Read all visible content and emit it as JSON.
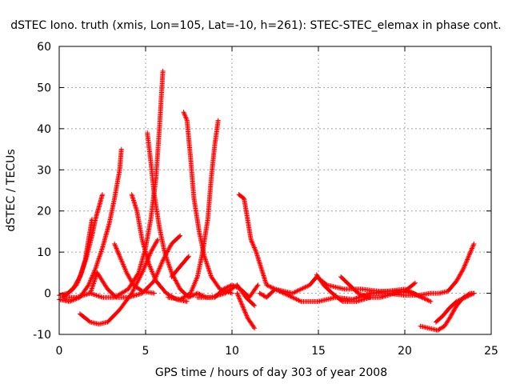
{
  "chart_data": {
    "type": "scatter",
    "title": "dSTEC Iono. truth (xmis, Lon=105, Lat=-10, h=261): STEC-STEC_elemax in phase cont.",
    "xlabel": "GPS time / hours of day 303 of year 2008",
    "ylabel": "dSTEC  / TECUs",
    "xlim": [
      0,
      25
    ],
    "ylim": [
      -10,
      60
    ],
    "xticks": [
      0,
      5,
      10,
      15,
      20,
      25
    ],
    "yticks": [
      -10,
      0,
      10,
      20,
      30,
      40,
      50,
      60
    ],
    "x_tick_labels": [
      "0",
      "5",
      "10",
      "15",
      "20",
      "25"
    ],
    "y_tick_labels": [
      "-10",
      "0",
      "10",
      "20",
      "30",
      "40",
      "50",
      "60"
    ],
    "grid": true,
    "marker": "plus",
    "color": "#ff0000",
    "series": [
      {
        "points": [
          [
            0.0,
            -0.5
          ],
          [
            0.5,
            0.0
          ],
          [
            1.0,
            2.0
          ],
          [
            1.3,
            5.0
          ],
          [
            1.6,
            9.0
          ],
          [
            1.9,
            14.0
          ],
          [
            2.1,
            18.0
          ],
          [
            2.3,
            21.0
          ],
          [
            2.5,
            24.0
          ]
        ]
      },
      {
        "points": [
          [
            0.0,
            -1.5
          ],
          [
            0.6,
            -2.0
          ],
          [
            1.2,
            -1.0
          ],
          [
            1.7,
            2.0
          ],
          [
            2.1,
            6.0
          ],
          [
            2.5,
            11.0
          ],
          [
            2.9,
            17.0
          ],
          [
            3.2,
            23.0
          ],
          [
            3.5,
            30.0
          ],
          [
            3.6,
            35.0
          ]
        ]
      },
      {
        "points": [
          [
            0.2,
            -1.0
          ],
          [
            0.8,
            1.0
          ],
          [
            1.2,
            4.0
          ],
          [
            1.5,
            8.0
          ],
          [
            1.7,
            13.0
          ],
          [
            1.9,
            18.0
          ]
        ]
      },
      {
        "points": [
          [
            0.3,
            -1.0
          ],
          [
            1.0,
            -1.0
          ],
          [
            1.8,
            0.0
          ],
          [
            2.5,
            -1.0
          ],
          [
            3.2,
            -1.0
          ],
          [
            4.0,
            1.0
          ],
          [
            4.6,
            5.0
          ],
          [
            5.0,
            11.0
          ],
          [
            5.3,
            18.0
          ],
          [
            5.6,
            28.0
          ],
          [
            5.8,
            40.0
          ],
          [
            6.0,
            54.0
          ]
        ]
      },
      {
        "points": [
          [
            1.2,
            -5.0
          ],
          [
            1.8,
            -7.0
          ],
          [
            2.3,
            -7.5
          ],
          [
            2.8,
            -7.0
          ],
          [
            3.5,
            -4.0
          ],
          [
            4.2,
            0.0
          ],
          [
            4.8,
            5.0
          ],
          [
            5.3,
            10.0
          ],
          [
            5.7,
            13.0
          ]
        ]
      },
      {
        "points": [
          [
            1.8,
            0.0
          ],
          [
            2.2,
            5.0
          ],
          [
            2.5,
            3.0
          ],
          [
            2.8,
            1.0
          ],
          [
            3.3,
            -1.0
          ],
          [
            4.0,
            -1.0
          ],
          [
            4.8,
            0.0
          ],
          [
            5.5,
            3.0
          ],
          [
            6.0,
            8.0
          ],
          [
            6.5,
            12.0
          ],
          [
            7.0,
            14.0
          ]
        ]
      },
      {
        "points": [
          [
            3.2,
            12.0
          ],
          [
            3.5,
            9.0
          ],
          [
            3.9,
            5.0
          ],
          [
            4.3,
            2.0
          ],
          [
            4.8,
            0.5
          ],
          [
            5.5,
            0.0
          ]
        ]
      },
      {
        "points": [
          [
            4.2,
            24.0
          ],
          [
            4.5,
            20.0
          ],
          [
            4.8,
            13.0
          ],
          [
            5.2,
            7.0
          ],
          [
            5.6,
            3.0
          ],
          [
            6.2,
            0.0
          ],
          [
            6.8,
            -1.5
          ],
          [
            7.4,
            -2.0
          ]
        ]
      },
      {
        "points": [
          [
            5.1,
            39.0
          ],
          [
            5.3,
            32.0
          ],
          [
            5.5,
            24.0
          ],
          [
            5.8,
            16.0
          ],
          [
            6.1,
            10.0
          ],
          [
            6.5,
            5.0
          ],
          [
            7.0,
            1.0
          ],
          [
            7.5,
            -1.0
          ],
          [
            8.0,
            0.0
          ],
          [
            8.5,
            -1.0
          ],
          [
            9.0,
            -1.0
          ],
          [
            9.5,
            1.0
          ],
          [
            10.0,
            2.0
          ],
          [
            10.5,
            1.0
          ],
          [
            11.0,
            -1.0
          ],
          [
            11.5,
            2.0
          ]
        ]
      },
      {
        "points": [
          [
            7.2,
            44.0
          ],
          [
            7.4,
            42.0
          ],
          [
            7.6,
            33.0
          ],
          [
            7.8,
            23.0
          ],
          [
            8.1,
            15.0
          ],
          [
            8.4,
            9.0
          ],
          [
            8.8,
            4.0
          ],
          [
            9.3,
            1.0
          ],
          [
            10.0,
            0.0
          ]
        ]
      },
      {
        "points": [
          [
            6.5,
            4.0
          ],
          [
            7.0,
            6.5
          ],
          [
            7.5,
            9.0
          ]
        ]
      },
      {
        "points": [
          [
            6.3,
            -1.0
          ],
          [
            7.0,
            -1.5
          ],
          [
            7.6,
            0.0
          ],
          [
            8.0,
            4.0
          ],
          [
            8.3,
            10.0
          ],
          [
            8.6,
            18.0
          ],
          [
            8.8,
            28.0
          ],
          [
            9.0,
            36.0
          ],
          [
            9.2,
            42.0
          ]
        ]
      },
      {
        "points": [
          [
            8.0,
            -1.0
          ],
          [
            8.8,
            -1.0
          ],
          [
            9.6,
            0.0
          ],
          [
            10.3,
            2.0
          ],
          [
            10.8,
            -1.0
          ],
          [
            11.3,
            -3.0
          ]
        ]
      },
      {
        "points": [
          [
            10.4,
            24.0
          ],
          [
            10.7,
            23.0
          ],
          [
            10.9,
            18.0
          ],
          [
            11.1,
            13.0
          ],
          [
            11.4,
            10.0
          ],
          [
            11.7,
            6.0
          ],
          [
            12.0,
            2.0
          ],
          [
            12.5,
            1.0
          ],
          [
            13.5,
            0.0
          ],
          [
            14.5,
            2.0
          ],
          [
            14.9,
            4.0
          ],
          [
            15.5,
            2.0
          ],
          [
            16.5,
            1.0
          ],
          [
            17.5,
            1.0
          ],
          [
            18.5,
            0.5
          ],
          [
            19.5,
            0.5
          ],
          [
            20.5,
            0.0
          ],
          [
            21.0,
            -1.0
          ],
          [
            21.5,
            -2.0
          ]
        ]
      },
      {
        "points": [
          [
            10.3,
            0.0
          ],
          [
            10.6,
            -3.0
          ],
          [
            10.9,
            -6.0
          ],
          [
            11.3,
            -8.5
          ]
        ]
      },
      {
        "points": [
          [
            11.6,
            0.0
          ],
          [
            12.0,
            -1.0
          ],
          [
            12.5,
            1.0
          ],
          [
            13.0,
            0.0
          ],
          [
            14.0,
            -2.0
          ],
          [
            15.0,
            -2.0
          ],
          [
            16.0,
            -1.0
          ],
          [
            17.0,
            -1.5
          ],
          [
            18.0,
            0.0
          ],
          [
            19.0,
            0.5
          ],
          [
            20.0,
            1.0
          ],
          [
            21.0,
            -1.0
          ]
        ]
      },
      {
        "points": [
          [
            14.9,
            4.5
          ],
          [
            15.3,
            2.0
          ],
          [
            15.8,
            0.0
          ],
          [
            16.4,
            -2.0
          ],
          [
            17.2,
            -2.0
          ],
          [
            18.0,
            -1.0
          ]
        ]
      },
      {
        "points": [
          [
            16.3,
            4.0
          ],
          [
            16.8,
            2.0
          ],
          [
            17.3,
            0.0
          ],
          [
            17.9,
            -1.0
          ],
          [
            18.6,
            -1.0
          ],
          [
            19.4,
            0.0
          ],
          [
            20.0,
            0.5
          ],
          [
            20.6,
            2.5
          ]
        ]
      },
      {
        "points": [
          [
            18.0,
            0.0
          ],
          [
            19.0,
            0.0
          ],
          [
            20.0,
            -0.5
          ],
          [
            20.8,
            -0.5
          ],
          [
            21.5,
            0.0
          ],
          [
            22.0,
            0.0
          ],
          [
            22.5,
            0.5
          ],
          [
            23.0,
            3.0
          ],
          [
            23.4,
            6.0
          ],
          [
            23.7,
            9.0
          ],
          [
            24.0,
            12.0
          ]
        ]
      },
      {
        "points": [
          [
            20.9,
            -8.0
          ],
          [
            21.4,
            -8.5
          ],
          [
            21.9,
            -9.0
          ],
          [
            22.3,
            -8.0
          ],
          [
            22.6,
            -6.0
          ],
          [
            23.0,
            -3.0
          ],
          [
            23.4,
            -1.0
          ],
          [
            23.8,
            0.0
          ],
          [
            24.0,
            0.0
          ]
        ]
      },
      {
        "points": [
          [
            21.8,
            -7.0
          ],
          [
            22.2,
            -5.5
          ],
          [
            22.6,
            -3.5
          ],
          [
            23.0,
            -2.0
          ],
          [
            23.5,
            -1.0
          ],
          [
            24.0,
            0.0
          ]
        ]
      }
    ]
  }
}
